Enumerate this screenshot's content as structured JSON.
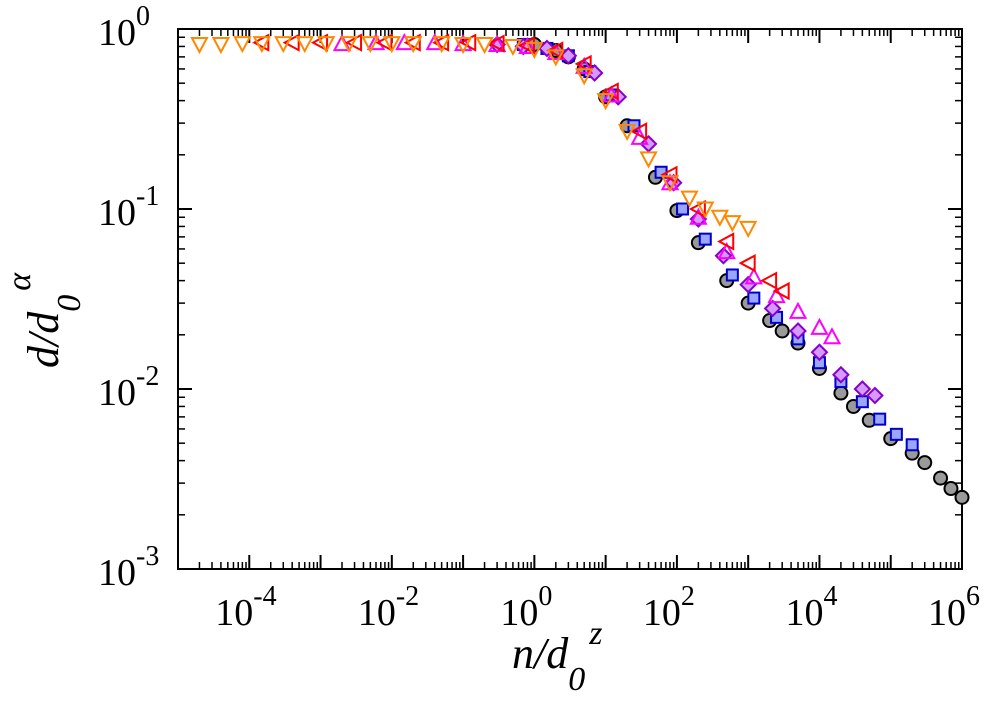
{
  "chart_data": {
    "type": "scatter",
    "title": "",
    "x_scale": "log",
    "y_scale": "log",
    "xlim": [
      1e-05,
      1000000
    ],
    "ylim": [
      0.001,
      1
    ],
    "grid": false,
    "legend": "none",
    "xlabel": {
      "base": "n/d",
      "sub": "0",
      "sup": "z"
    },
    "ylabel": {
      "base": "d/d",
      "sub": "0",
      "sup": "α"
    },
    "x_ticks": [
      {
        "value": 0.0001,
        "base": "10",
        "exp": "-4"
      },
      {
        "value": 0.01,
        "base": "10",
        "exp": "-2"
      },
      {
        "value": 1,
        "base": "10",
        "exp": "0"
      },
      {
        "value": 100,
        "base": "10",
        "exp": "2"
      },
      {
        "value": 10000,
        "base": "10",
        "exp": "4"
      },
      {
        "value": 1000000,
        "base": "10",
        "exp": "6"
      }
    ],
    "y_ticks": [
      {
        "value": 1,
        "base": "10",
        "exp": "0"
      },
      {
        "value": 0.1,
        "base": "10",
        "exp": "-1"
      },
      {
        "value": 0.01,
        "base": "10",
        "exp": "-2"
      },
      {
        "value": 0.001,
        "base": "10",
        "exp": "-3"
      }
    ],
    "series": [
      {
        "name": "black circles",
        "marker": "circle",
        "color": "#000000",
        "fill": "#9a9a9a",
        "x": [
          1,
          2,
          3,
          5,
          10,
          20,
          50,
          100,
          200,
          500,
          1000,
          2000,
          3000,
          5000,
          10000,
          20000,
          30000,
          50000,
          100000,
          200000,
          300000,
          500000,
          700000,
          1000000
        ],
        "y": [
          0.82,
          0.76,
          0.7,
          0.6,
          0.42,
          0.29,
          0.15,
          0.098,
          0.065,
          0.04,
          0.03,
          0.024,
          0.021,
          0.018,
          0.013,
          0.0095,
          0.008,
          0.0067,
          0.0053,
          0.0044,
          0.0039,
          0.0032,
          0.0028,
          0.0025
        ]
      },
      {
        "name": "blue squares",
        "marker": "square",
        "color": "#0000cc",
        "fill": "#9aa6ff",
        "x": [
          0.7,
          1.5,
          3,
          6,
          12,
          25,
          60,
          120,
          250,
          600,
          1200,
          2500,
          5000,
          10000,
          20000,
          40000,
          70000,
          120000,
          200000
        ],
        "y": [
          0.82,
          0.78,
          0.71,
          0.58,
          0.43,
          0.29,
          0.16,
          0.1,
          0.068,
          0.043,
          0.032,
          0.025,
          0.019,
          0.014,
          0.011,
          0.0085,
          0.0068,
          0.0056,
          0.0049
        ]
      },
      {
        "name": "purple diamonds",
        "marker": "diamond",
        "color": "#8800cc",
        "fill": "#d49aff",
        "x": [
          0.3,
          0.7,
          1.5,
          3,
          7,
          15,
          40,
          90,
          200,
          450,
          1000,
          2200,
          5000,
          10000,
          20000,
          40000,
          60000
        ],
        "y": [
          0.82,
          0.8,
          0.78,
          0.71,
          0.57,
          0.42,
          0.23,
          0.14,
          0.088,
          0.055,
          0.038,
          0.028,
          0.021,
          0.016,
          0.012,
          0.01,
          0.0092
        ]
      },
      {
        "name": "magenta triangles",
        "marker": "triangle-up",
        "color": "#ff00ff",
        "fill": "none",
        "x": [
          0.002,
          0.006,
          0.015,
          0.04,
          0.1,
          0.3,
          0.8,
          2,
          5,
          12,
          30,
          80,
          200,
          500,
          1200,
          2500,
          5000,
          10000,
          15000
        ],
        "y": [
          0.83,
          0.84,
          0.84,
          0.84,
          0.83,
          0.82,
          0.8,
          0.74,
          0.62,
          0.43,
          0.25,
          0.14,
          0.09,
          0.058,
          0.042,
          0.033,
          0.027,
          0.022,
          0.0195
        ]
      },
      {
        "name": "red left triangles",
        "marker": "triangle-left",
        "color": "#ff0000",
        "fill": "none",
        "x": [
          0.00015,
          0.0004,
          0.001,
          0.003,
          0.008,
          0.02,
          0.05,
          0.12,
          0.3,
          0.8,
          2,
          5,
          12,
          30,
          80,
          200,
          500,
          1000,
          2000,
          3000
        ],
        "y": [
          0.84,
          0.84,
          0.84,
          0.84,
          0.84,
          0.84,
          0.84,
          0.84,
          0.83,
          0.81,
          0.76,
          0.64,
          0.45,
          0.27,
          0.155,
          0.1,
          0.066,
          0.05,
          0.04,
          0.035
        ]
      },
      {
        "name": "orange down triangles",
        "marker": "triangle-down",
        "color": "#ff8800",
        "fill": "none",
        "x": [
          2e-05,
          4e-05,
          8e-05,
          0.00015,
          0.0003,
          0.0006,
          0.0012,
          0.0025,
          0.005,
          0.01,
          0.02,
          0.05,
          0.1,
          0.2,
          0.5,
          1,
          2,
          5,
          10,
          20,
          40,
          80,
          150,
          250,
          400,
          600,
          1000
        ],
        "y": [
          0.82,
          0.82,
          0.83,
          0.83,
          0.83,
          0.83,
          0.83,
          0.83,
          0.83,
          0.83,
          0.83,
          0.83,
          0.82,
          0.82,
          0.8,
          0.77,
          0.7,
          0.55,
          0.4,
          0.27,
          0.19,
          0.14,
          0.115,
          0.1,
          0.09,
          0.084,
          0.078
        ]
      }
    ]
  }
}
